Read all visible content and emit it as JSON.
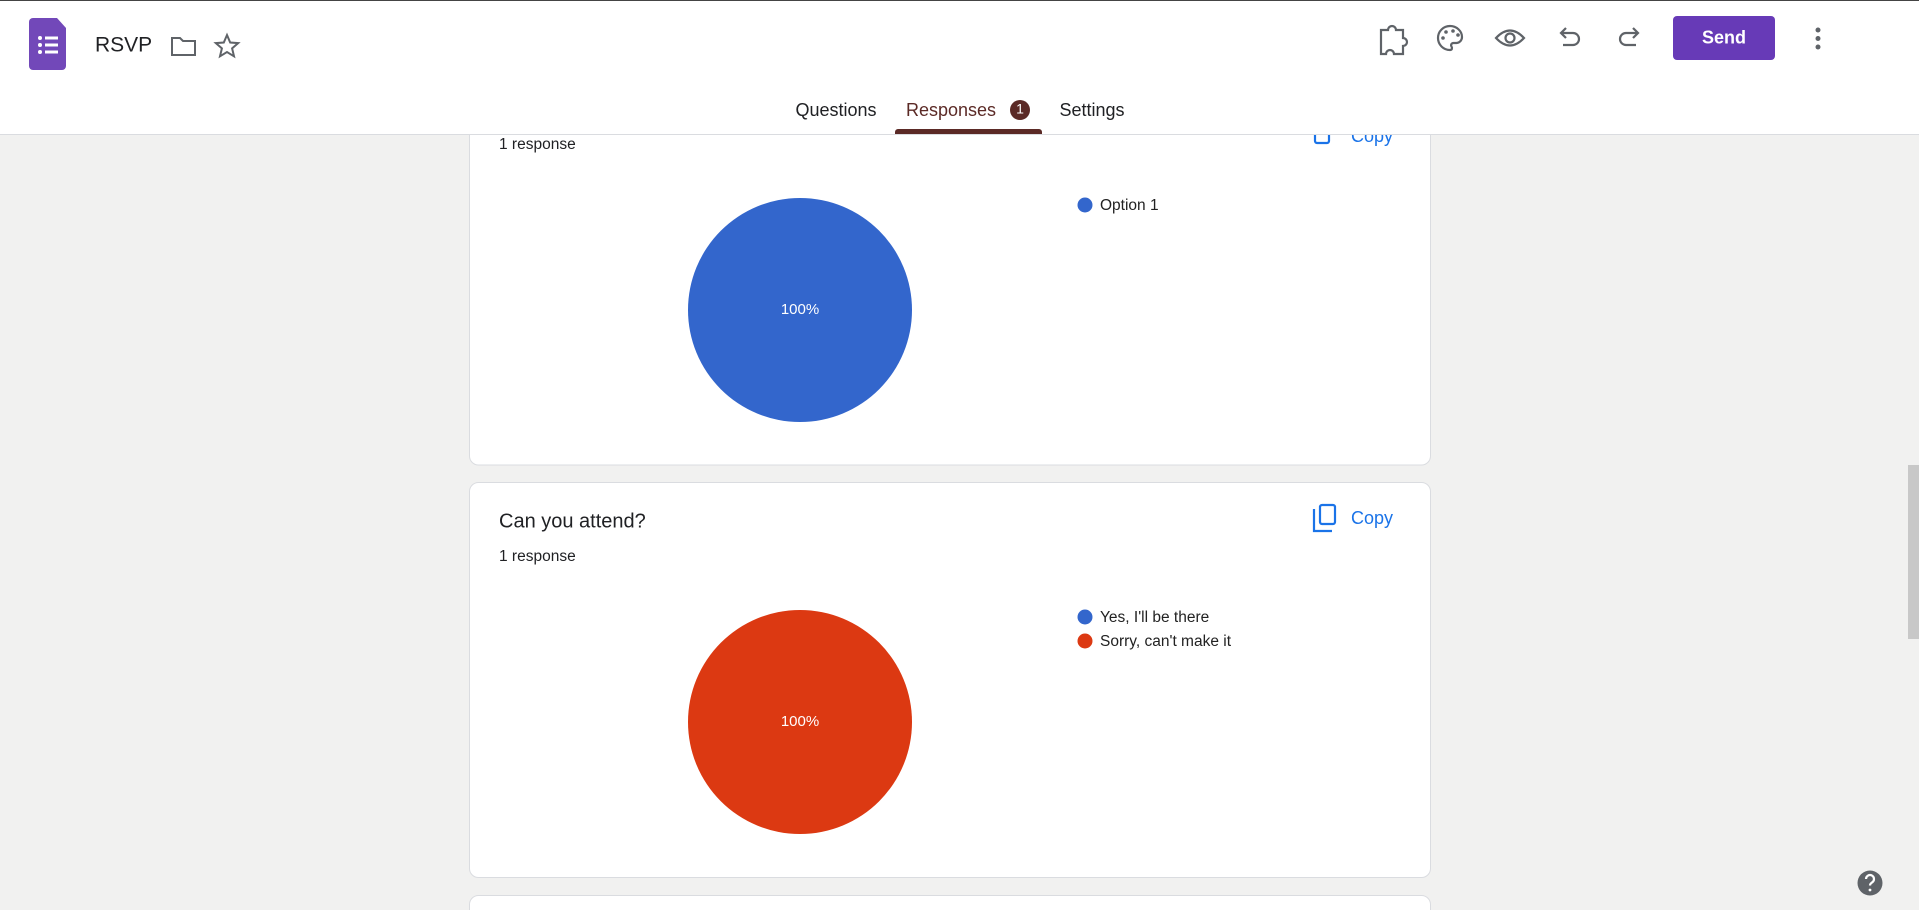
{
  "header": {
    "title": "RSVP",
    "send": "Send"
  },
  "tabs": {
    "items": [
      "Questions",
      "Responses",
      "Settings"
    ],
    "responses_badge": "1"
  },
  "cards": [
    {
      "response_count": "1 response",
      "copy": "Copy",
      "chart_data": {
        "type": "pie",
        "categories": [
          "Option 1"
        ],
        "values": [
          100
        ],
        "value_labels": [
          "100%"
        ],
        "colors": [
          "#3366cc"
        ]
      }
    },
    {
      "title": "Can you attend?",
      "response_count": "1 response",
      "copy": "Copy",
      "chart_data": {
        "type": "pie",
        "categories": [
          "Yes, I'll be there",
          "Sorry, can't make it"
        ],
        "values": [
          0,
          100
        ],
        "value_labels": [
          null,
          "100%"
        ],
        "colors": [
          "#3366cc",
          "#dc3912"
        ]
      }
    }
  ]
}
